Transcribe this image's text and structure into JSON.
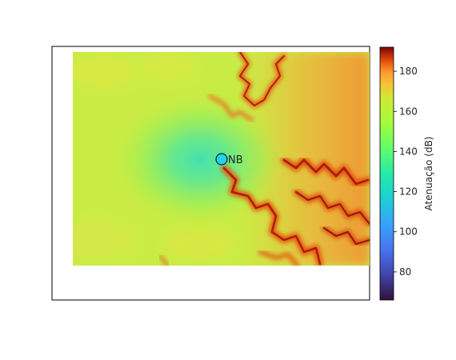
{
  "chart_data": {
    "type": "heatmap",
    "title": "",
    "xlabel": "",
    "ylabel": "",
    "colormap": "turbo",
    "colorbar": {
      "label": "Atenuação (dB)",
      "range": [
        66,
        192
      ],
      "ticks": [
        80,
        100,
        120,
        140,
        160,
        180
      ]
    },
    "background_level_db": 140,
    "field_description_levels_db": {
      "near_transmitter": 118,
      "plateau": 140,
      "ridges": 165,
      "deep_shadow": 185
    },
    "marker": {
      "label": "NB",
      "color": "#22d3ee"
    }
  }
}
